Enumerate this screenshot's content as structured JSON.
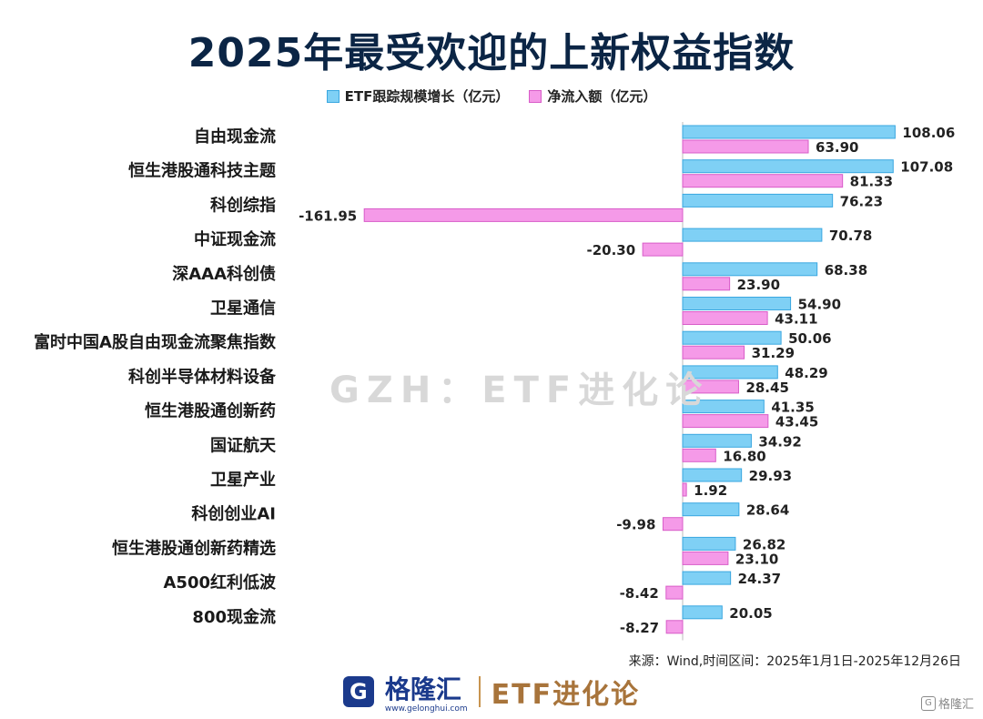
{
  "title": "2025年最受欢迎的上新权益指数",
  "legend": {
    "scale": "ETF跟踪规模增长（亿元）",
    "flow": "净流入额（亿元）"
  },
  "colors": {
    "scale_fill": "#7fd0f5",
    "scale_stroke": "#3aa7e0",
    "flow_fill": "#f59ae8",
    "flow_stroke": "#d85cc8",
    "axis": "#bbbbbb"
  },
  "watermark": "GZH：ETF进化论",
  "source": "来源：Wind,时间区间：2025年1月1日-2025年12月26日",
  "footer": {
    "logo_glyph": "G",
    "brand_name": "格隆汇",
    "brand_url": "www.gelonghui.com",
    "brand2": "ETF进化论"
  },
  "corner_mark": {
    "icon": "G",
    "text": "格隆汇"
  },
  "chart_data": {
    "type": "bar",
    "orientation": "horizontal",
    "categories": [
      "自由现金流",
      "恒生港股通科技主题",
      "科创综指",
      "中证现金流",
      "深AAA科创债",
      "卫星通信",
      "富时中国A股自由现金流聚焦指数",
      "科创半导体材料设备",
      "恒生港股通创新药",
      "国证航天",
      "卫星产业",
      "科创创业AI",
      "恒生港股通创新药精选",
      "A500红利低波",
      "800现金流"
    ],
    "series": [
      {
        "name": "ETF跟踪规模增长（亿元）",
        "values": [
          108.06,
          107.08,
          76.23,
          70.78,
          68.38,
          54.9,
          50.06,
          48.29,
          41.35,
          34.92,
          29.93,
          28.64,
          26.82,
          24.37,
          20.05
        ],
        "labels": [
          "108.06",
          "107.08",
          "76.23",
          "70.78",
          "68.38",
          "54.90",
          "50.06",
          "48.29",
          "41.35",
          "34.92",
          "29.93",
          "28.64",
          "26.82",
          "24.37",
          "20.05"
        ]
      },
      {
        "name": "净流入额（亿元）",
        "values": [
          63.9,
          81.33,
          -161.95,
          -20.3,
          23.9,
          43.11,
          31.29,
          28.45,
          43.45,
          16.8,
          1.92,
          -9.98,
          23.1,
          -8.42,
          -8.27
        ],
        "labels": [
          "63.90",
          "81.33",
          "-161.95",
          "-20.30",
          "23.90",
          "43.11",
          "31.29",
          "28.45",
          "43.45",
          "16.80",
          "1.92",
          "-9.98",
          "23.10",
          "-8.42",
          "-8.27"
        ]
      }
    ],
    "title": "2025年最受欢迎的上新权益指数",
    "legend_position": "top"
  }
}
